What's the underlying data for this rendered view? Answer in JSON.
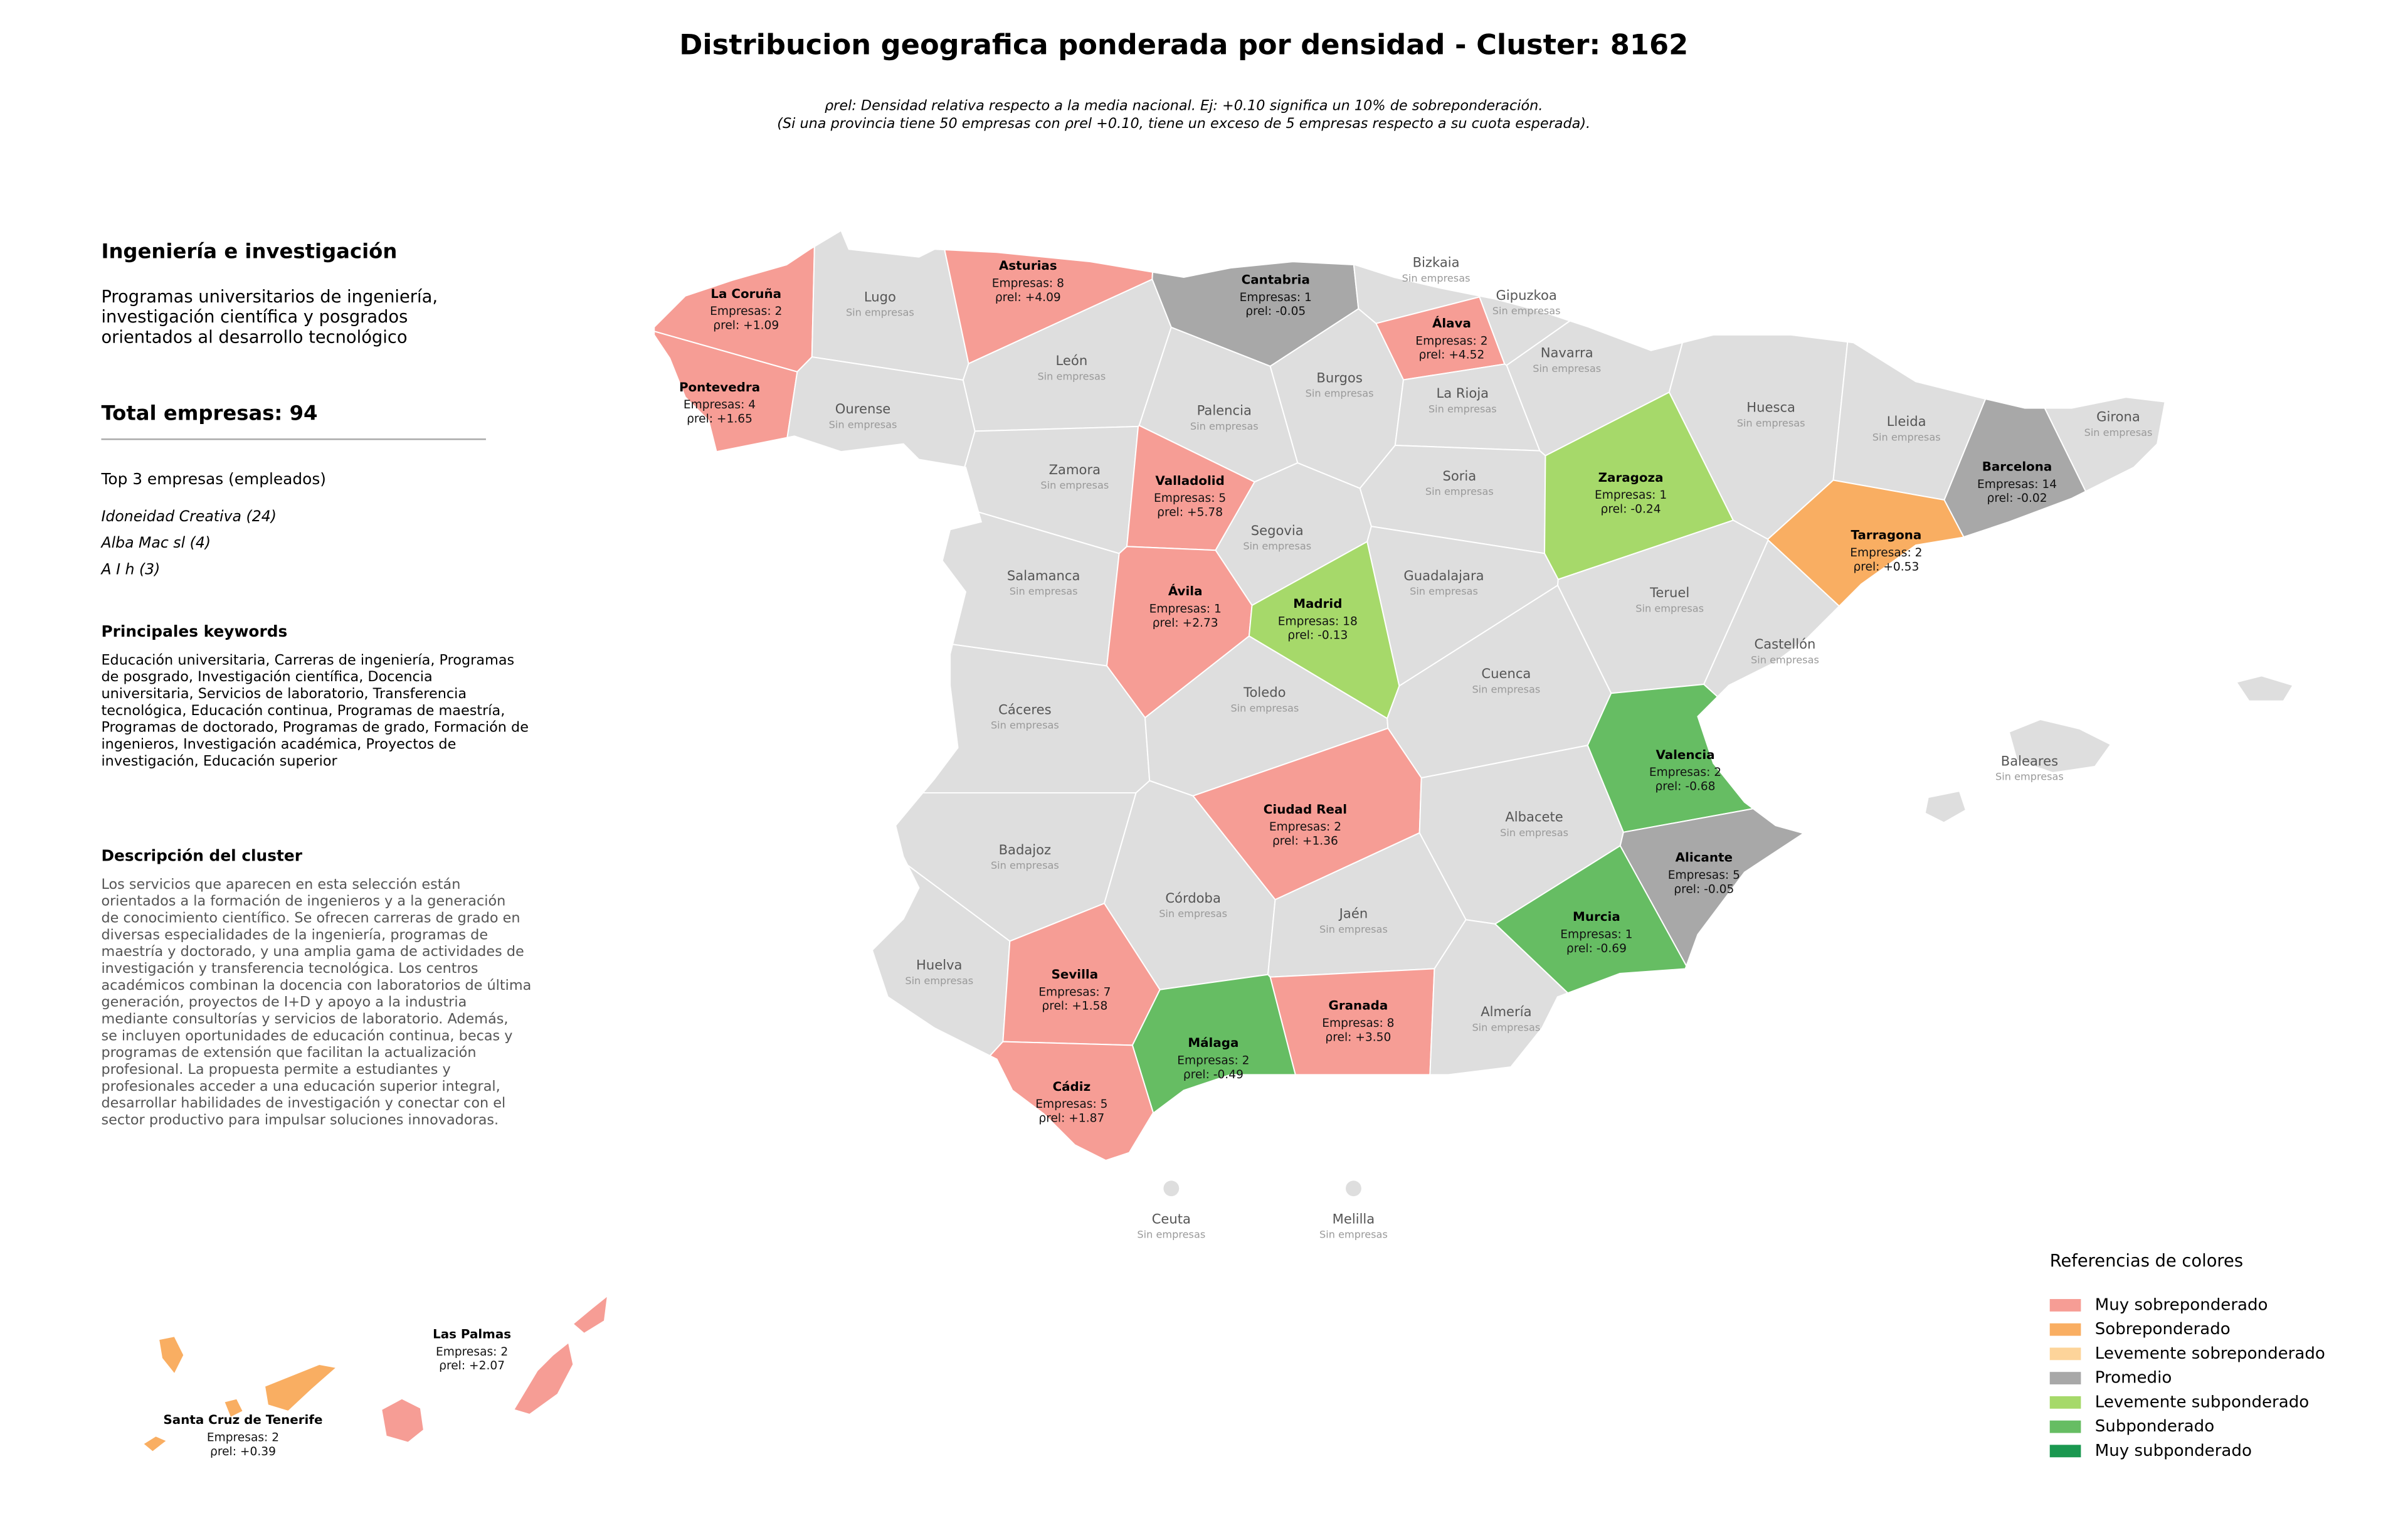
{
  "header": {
    "title": "Distribucion geografica ponderada por densidad - Cluster: 8162",
    "subtitle": [
      "ρrel: Densidad relativa respecto a la media nacional. Ej: +0.10 significa un 10% de sobreponderación.",
      "(Si una provincia tiene 50 empresas con ρrel +0.10, tiene un exceso de 5 empresas respecto a su cuota esperada)."
    ]
  },
  "panel": {
    "heading": "Ingeniería e investigación",
    "description": [
      "Programas universitarios de ingeniería,",
      "investigación científica y posgrados",
      "orientados al desarrollo tecnológico"
    ],
    "total": "Total empresas: 94",
    "top_title": "Top 3 empresas (empleados)",
    "top": [
      "Idoneidad Creativa (24)",
      "Alba Mac sl (4)",
      "A I h (3)"
    ],
    "keywords_title": "Principales keywords",
    "keywords": [
      "Educación universitaria, Carreras de ingeniería, Programas",
      "de posgrado, Investigación científica, Docencia",
      "universitaria, Servicios de laboratorio, Transferencia",
      "tecnológica, Educación continua, Programas de maestría,",
      "Programas de doctorado, Programas de grado, Formación de",
      "ingenieros, Investigación académica, Proyectos de",
      "investigación, Educación superior"
    ],
    "cluster_title": "Descripción del cluster",
    "cluster_text": [
      "Los servicios que aparecen en esta selección están",
      "orientados a la formación de ingenieros y a la generación",
      "de conocimiento científico. Se ofrecen carreras de grado en",
      "diversas especialidades de la ingeniería, programas de",
      "maestría y doctorado, y una amplia gama de actividades de",
      "investigación y transferencia tecnológica. Los centros",
      "académicos combinan la docencia con laboratorios de última",
      "generación, proyectos de I+D y apoyo a la industria",
      "mediante consultorías y servicios de laboratorio. Además,",
      "se incluyen oportunidades de educación continua, becas y",
      "programas de extensión que facilitan la actualización",
      "profesional. La propuesta permite a estudiantes y",
      "profesionales acceder a una educación superior integral,",
      "desarrollar habilidades de investigación y conectar con el",
      "sector productivo para impulsar soluciones innovadoras."
    ]
  },
  "legend": {
    "title": "Referencias de colores",
    "items": [
      {
        "label": "Muy sobreponderado",
        "color": "#f69d95"
      },
      {
        "label": "Sobreponderado",
        "color": "#f9ae62"
      },
      {
        "label": "Levemente sobreponderado",
        "color": "#fdd49a"
      },
      {
        "label": "Promedio",
        "color": "#a8a8a8"
      },
      {
        "label": "Levemente subponderado",
        "color": "#a6d96a"
      },
      {
        "label": "Subponderado",
        "color": "#66bd63"
      },
      {
        "label": "Muy subponderado",
        "color": "#1a9850"
      }
    ]
  },
  "provinces": [
    {
      "name": "La Coruña",
      "color": "#f69d95",
      "info": [
        "Empresas: 2",
        "ρrel: +1.09"
      ]
    },
    {
      "name": "Lugo",
      "color": "#dedede",
      "info": [
        "Sin empresas"
      ]
    },
    {
      "name": "Asturias",
      "color": "#f69d95",
      "info": [
        "Empresas: 8",
        "ρrel: +4.09"
      ]
    },
    {
      "name": "Cantabria",
      "color": "#a8a8a8",
      "info": [
        "Empresas: 1",
        "ρrel: -0.05"
      ]
    },
    {
      "name": "Bizkaia",
      "color": "#dedede",
      "info": [
        "Sin empresas"
      ]
    },
    {
      "name": "Álava",
      "color": "#f69d95",
      "info": [
        "Empresas: 2",
        "ρrel: +4.52"
      ]
    },
    {
      "name": "Gipuzkoa",
      "color": "#dedede",
      "info": [
        "Sin empresas"
      ]
    },
    {
      "name": "Navarra",
      "color": "#dedede",
      "info": [
        "Sin empresas"
      ]
    },
    {
      "name": "Pontevedra",
      "color": "#f69d95",
      "info": [
        "Empresas: 4",
        "ρrel: +1.65"
      ]
    },
    {
      "name": "Ourense",
      "color": "#dedede",
      "info": [
        "Sin empresas"
      ]
    },
    {
      "name": "León",
      "color": "#dedede",
      "info": [
        "Sin empresas"
      ]
    },
    {
      "name": "Palencia",
      "color": "#dedede",
      "info": [
        "Sin empresas"
      ]
    },
    {
      "name": "Burgos",
      "color": "#dedede",
      "info": [
        "Sin empresas"
      ]
    },
    {
      "name": "La Rioja",
      "color": "#dedede",
      "info": [
        "Sin empresas"
      ]
    },
    {
      "name": "Huesca",
      "color": "#dedede",
      "info": [
        "Sin empresas"
      ]
    },
    {
      "name": "Lleida",
      "color": "#dedede",
      "info": [
        "Sin empresas"
      ]
    },
    {
      "name": "Girona",
      "color": "#dedede",
      "info": [
        "Sin empresas"
      ]
    },
    {
      "name": "Barcelona",
      "color": "#a8a8a8",
      "info": [
        "Empresas: 14",
        "ρrel: -0.02"
      ]
    },
    {
      "name": "Zamora",
      "color": "#dedede",
      "info": [
        "Sin empresas"
      ]
    },
    {
      "name": "Valladolid",
      "color": "#f69d95",
      "info": [
        "Empresas: 5",
        "ρrel: +5.78"
      ]
    },
    {
      "name": "Soria",
      "color": "#dedede",
      "info": [
        "Sin empresas"
      ]
    },
    {
      "name": "Zaragoza",
      "color": "#a6d96a",
      "info": [
        "Empresas: 1",
        "ρrel: -0.24"
      ]
    },
    {
      "name": "Tarragona",
      "color": "#f9ae62",
      "info": [
        "Empresas: 2",
        "ρrel: +0.53"
      ]
    },
    {
      "name": "Salamanca",
      "color": "#dedede",
      "info": [
        "Sin empresas"
      ]
    },
    {
      "name": "Segovia",
      "color": "#dedede",
      "info": [
        "Sin empresas"
      ]
    },
    {
      "name": "Ávila",
      "color": "#f69d95",
      "info": [
        "Empresas: 1",
        "ρrel: +2.73"
      ]
    },
    {
      "name": "Madrid",
      "color": "#a6d96a",
      "info": [
        "Empresas: 18",
        "ρrel: -0.13"
      ]
    },
    {
      "name": "Guadalajara",
      "color": "#dedede",
      "info": [
        "Sin empresas"
      ]
    },
    {
      "name": "Teruel",
      "color": "#dedede",
      "info": [
        "Sin empresas"
      ]
    },
    {
      "name": "Castellón",
      "color": "#dedede",
      "info": [
        "Sin empresas"
      ]
    },
    {
      "name": "Cáceres",
      "color": "#dedede",
      "info": [
        "Sin empresas"
      ]
    },
    {
      "name": "Toledo",
      "color": "#dedede",
      "info": [
        "Sin empresas"
      ]
    },
    {
      "name": "Cuenca",
      "color": "#dedede",
      "info": [
        "Sin empresas"
      ]
    },
    {
      "name": "Valencia",
      "color": "#66bd63",
      "info": [
        "Empresas: 2",
        "ρrel: -0.68"
      ]
    },
    {
      "name": "Ciudad Real",
      "color": "#f69d95",
      "info": [
        "Empresas: 2",
        "ρrel: +1.36"
      ]
    },
    {
      "name": "Badajoz",
      "color": "#dedede",
      "info": [
        "Sin empresas"
      ]
    },
    {
      "name": "Albacete",
      "color": "#dedede",
      "info": [
        "Sin empresas"
      ]
    },
    {
      "name": "Alicante",
      "color": "#a8a8a8",
      "info": [
        "Empresas: 5",
        "ρrel: -0.05"
      ]
    },
    {
      "name": "Córdoba",
      "color": "#dedede",
      "info": [
        "Sin empresas"
      ]
    },
    {
      "name": "Jaén",
      "color": "#dedede",
      "info": [
        "Sin empresas"
      ]
    },
    {
      "name": "Murcia",
      "color": "#66bd63",
      "info": [
        "Empresas: 1",
        "ρrel: -0.69"
      ]
    },
    {
      "name": "Huelva",
      "color": "#dedede",
      "info": [
        "Sin empresas"
      ]
    },
    {
      "name": "Sevilla",
      "color": "#f69d95",
      "info": [
        "Empresas: 7",
        "ρrel: +1.58"
      ]
    },
    {
      "name": "Granada",
      "color": "#f69d95",
      "info": [
        "Empresas: 8",
        "ρrel: +3.50"
      ]
    },
    {
      "name": "Almería",
      "color": "#dedede",
      "info": [
        "Sin empresas"
      ]
    },
    {
      "name": "Málaga",
      "color": "#66bd63",
      "info": [
        "Empresas: 2",
        "ρrel: -0.49"
      ]
    },
    {
      "name": "Cádiz",
      "color": "#f69d95",
      "info": [
        "Empresas: 5",
        "ρrel: +1.87"
      ]
    },
    {
      "name": "Baleares",
      "color": "#dedede",
      "info": [
        "Sin empresas"
      ]
    },
    {
      "name": "Ceuta",
      "color": "#dedede",
      "info": [
        "Sin empresas"
      ]
    },
    {
      "name": "Melilla",
      "color": "#dedede",
      "info": [
        "Sin empresas"
      ]
    },
    {
      "name": "Las Palmas",
      "color": "#f69d95",
      "info": [
        "Empresas: 2",
        "ρrel: +2.07"
      ]
    },
    {
      "name": "Santa Cruz de Tenerife",
      "color": "#f9ae62",
      "info": [
        "Empresas: 2",
        "ρrel: +0.39"
      ]
    }
  ]
}
